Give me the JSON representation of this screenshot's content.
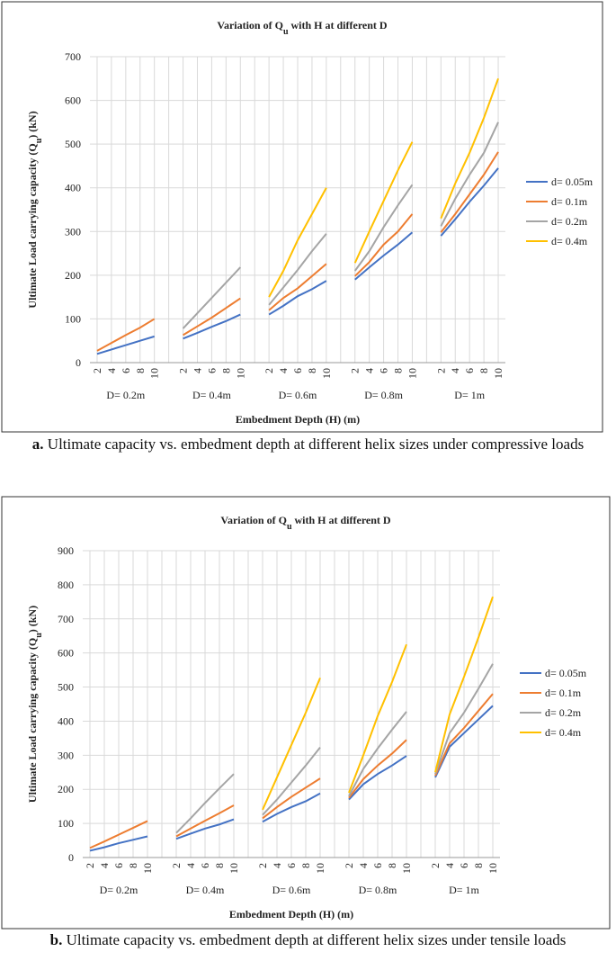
{
  "chart_data": [
    {
      "type": "line",
      "title": [
        "Variation of Q",
        "u",
        " with H at different D"
      ],
      "y_label": [
        "Ultimate Load carrying capacity (Q",
        "u",
        ") (kN)"
      ],
      "x_label": "Embedment Depth (H) (m)",
      "caption_tag": "a.",
      "caption": "Ultimate capacity vs. embedment depth at different helix sizes under compressive loads",
      "categories": [
        2,
        4,
        6,
        8,
        10,
        null,
        2,
        4,
        6,
        8,
        10,
        null,
        2,
        4,
        6,
        8,
        10,
        null,
        2,
        4,
        6,
        8,
        10,
        null,
        2,
        4,
        6,
        8,
        10
      ],
      "groups": [
        "D= 0.2m",
        "D= 0.4m",
        "D= 0.6m",
        "D= 0.8m",
        "D= 1m"
      ],
      "ylim": [
        0,
        700
      ],
      "yticks": [
        0,
        100,
        200,
        300,
        400,
        500,
        600,
        700
      ],
      "grid": true,
      "legend": "right",
      "series": [
        {
          "name": "d= 0.05m",
          "color": "#4472c4",
          "values": [
            20,
            30,
            40,
            50,
            60,
            null,
            55,
            68,
            82,
            95,
            110,
            null,
            110,
            130,
            152,
            168,
            187,
            null,
            190,
            218,
            245,
            270,
            298,
            null,
            290,
            328,
            368,
            405,
            445
          ]
        },
        {
          "name": "d= 0.1m",
          "color": "#ed7d31",
          "values": [
            27,
            45,
            63,
            80,
            100,
            null,
            63,
            83,
            103,
            125,
            147,
            null,
            120,
            148,
            170,
            198,
            226,
            null,
            198,
            230,
            270,
            300,
            340,
            null,
            298,
            340,
            385,
            430,
            482
          ]
        },
        {
          "name": "d= 0.2m",
          "color": "#a5a5a5",
          "values": [
            null,
            null,
            null,
            null,
            null,
            null,
            78,
            113,
            148,
            183,
            218,
            null,
            132,
            172,
            212,
            255,
            295,
            null,
            210,
            255,
            310,
            360,
            407,
            null,
            312,
            375,
            430,
            480,
            550
          ]
        },
        {
          "name": "d= 0.4m",
          "color": "#ffc000",
          "values": [
            null,
            null,
            null,
            null,
            null,
            null,
            null,
            null,
            null,
            null,
            null,
            null,
            150,
            210,
            280,
            340,
            400,
            null,
            228,
            300,
            370,
            440,
            505,
            null,
            330,
            410,
            480,
            560,
            650
          ]
        }
      ]
    },
    {
      "type": "line",
      "title": [
        "Variation of Q",
        "u",
        " with H at different D"
      ],
      "y_label": [
        "Ultimate Load carrying capacity (Q",
        "u",
        ") (kN)"
      ],
      "x_label": "Embedment Depth (H) (m)",
      "caption_tag": "b.",
      "caption": "Ultimate capacity vs. embedment depth at different helix sizes under tensile loads",
      "categories": [
        2,
        4,
        6,
        8,
        10,
        null,
        2,
        4,
        6,
        8,
        10,
        null,
        2,
        4,
        6,
        8,
        10,
        null,
        2,
        4,
        6,
        8,
        10,
        null,
        2,
        4,
        6,
        8,
        10
      ],
      "groups": [
        "D= 0.2m",
        "D= 0.4m",
        "D= 0.6m",
        "D= 0.8m",
        "D= 1m"
      ],
      "ylim": [
        0,
        900
      ],
      "yticks": [
        0,
        100,
        200,
        300,
        400,
        500,
        600,
        700,
        800,
        900
      ],
      "grid": true,
      "legend": "right",
      "series": [
        {
          "name": "d= 0.05m",
          "color": "#4472c4",
          "values": [
            20,
            30,
            42,
            52,
            62,
            null,
            55,
            70,
            85,
            97,
            112,
            null,
            105,
            128,
            148,
            165,
            188,
            null,
            170,
            215,
            245,
            270,
            298,
            null,
            235,
            325,
            365,
            405,
            445
          ]
        },
        {
          "name": "d= 0.1m",
          "color": "#ed7d31",
          "values": [
            28,
            47,
            67,
            87,
            107,
            null,
            62,
            85,
            108,
            130,
            153,
            null,
            115,
            148,
            178,
            205,
            232,
            null,
            175,
            230,
            270,
            305,
            345,
            null,
            240,
            335,
            380,
            430,
            480
          ]
        },
        {
          "name": "d= 0.2m",
          "color": "#a5a5a5",
          "values": [
            null,
            null,
            null,
            null,
            null,
            null,
            72,
            115,
            160,
            203,
            245,
            null,
            125,
            170,
            220,
            270,
            323,
            null,
            180,
            260,
            320,
            375,
            428,
            null,
            245,
            365,
            425,
            495,
            568
          ]
        },
        {
          "name": "d= 0.4m",
          "color": "#ffc000",
          "values": [
            null,
            null,
            null,
            null,
            null,
            null,
            null,
            null,
            null,
            null,
            null,
            null,
            140,
            235,
            330,
            425,
            527,
            null,
            190,
            300,
            415,
            515,
            625,
            null,
            250,
            420,
            530,
            645,
            765
          ]
        }
      ]
    }
  ]
}
